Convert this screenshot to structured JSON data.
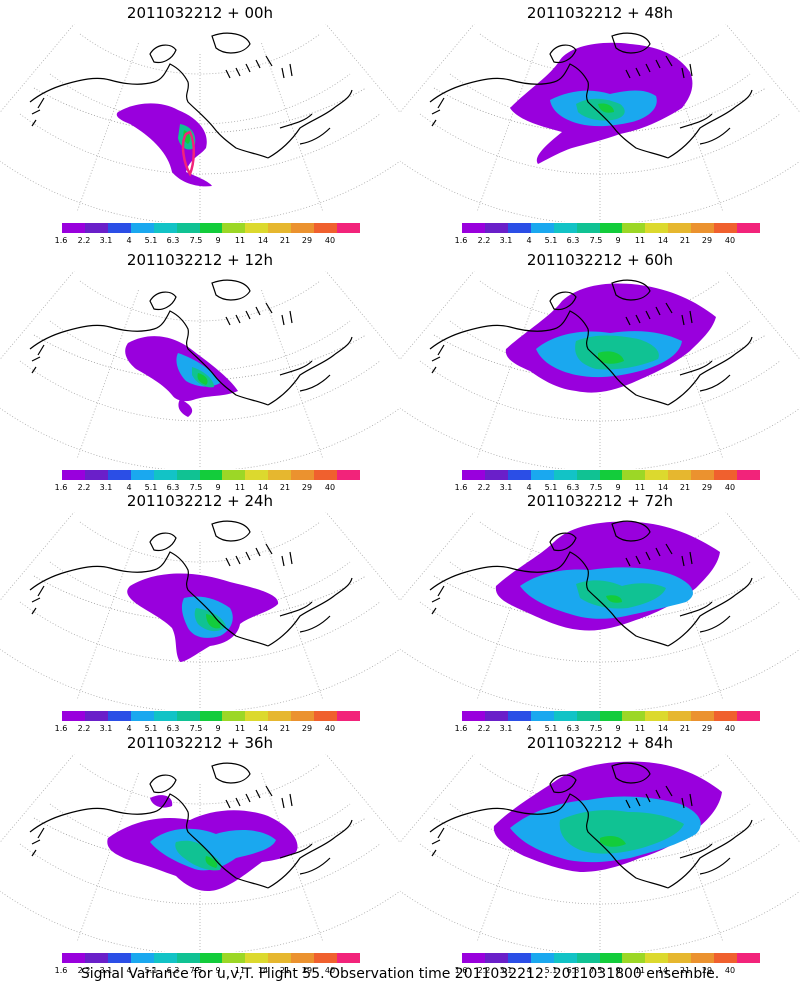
{
  "panels": [
    {
      "title": "2011032212 + 00h",
      "lead_hours": 0
    },
    {
      "title": "2011032212 + 48h",
      "lead_hours": 48
    },
    {
      "title": "2011032212 + 12h",
      "lead_hours": 12
    },
    {
      "title": "2011032212 + 60h",
      "lead_hours": 60
    },
    {
      "title": "2011032212 + 24h",
      "lead_hours": 24
    },
    {
      "title": "2011032212 + 72h",
      "lead_hours": 72
    },
    {
      "title": "2011032212 + 36h",
      "lead_hours": 36
    },
    {
      "title": "2011032212 + 84h",
      "lead_hours": 84
    }
  ],
  "colorbar": {
    "labels": [
      "1.6",
      "2.2",
      "3.1",
      "4",
      "5.1",
      "6.3",
      "7.5",
      "9",
      "11",
      "14",
      "21",
      "29",
      "40"
    ],
    "colors": [
      "#9900dd",
      "#6a1fc9",
      "#2b4ee6",
      "#1aa8ef",
      "#12c3c6",
      "#10c293",
      "#13cc3b",
      "#9cd726",
      "#dcd92e",
      "#e6b72f",
      "#eb922f",
      "#f0602e",
      "#f2237a"
    ]
  },
  "caption": "Signal Variance for u,v,T. Flight 55. Observation time 2011032212. 2011031800 ensemble."
}
